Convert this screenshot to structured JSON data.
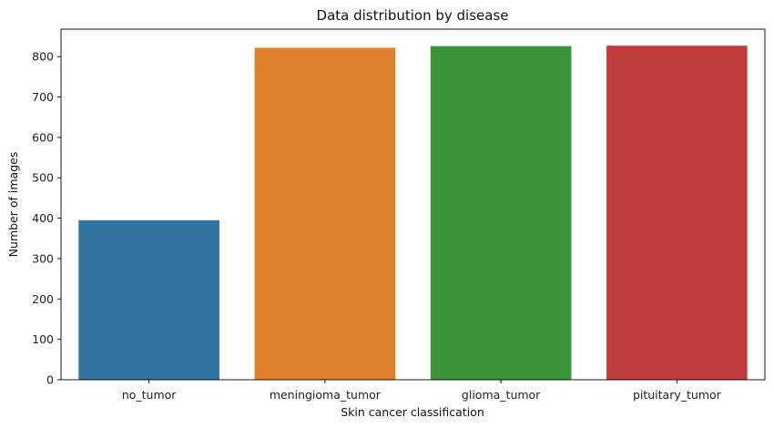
{
  "chart_data": {
    "type": "bar",
    "title": "Data distribution by disease",
    "xlabel": "Skin cancer classification",
    "ylabel": "Number of images",
    "categories": [
      "no_tumor",
      "meningioma_tumor",
      "glioma_tumor",
      "pituitary_tumor"
    ],
    "values": [
      395,
      822,
      826,
      827
    ],
    "colors": [
      "#3274a1",
      "#e1812c",
      "#3a923a",
      "#c03d3e"
    ],
    "ylim": [
      0,
      868
    ],
    "yticks": [
      "0",
      "100",
      "200",
      "300",
      "400",
      "500",
      "600",
      "700",
      "800"
    ],
    "grid": false,
    "legend": "none"
  }
}
